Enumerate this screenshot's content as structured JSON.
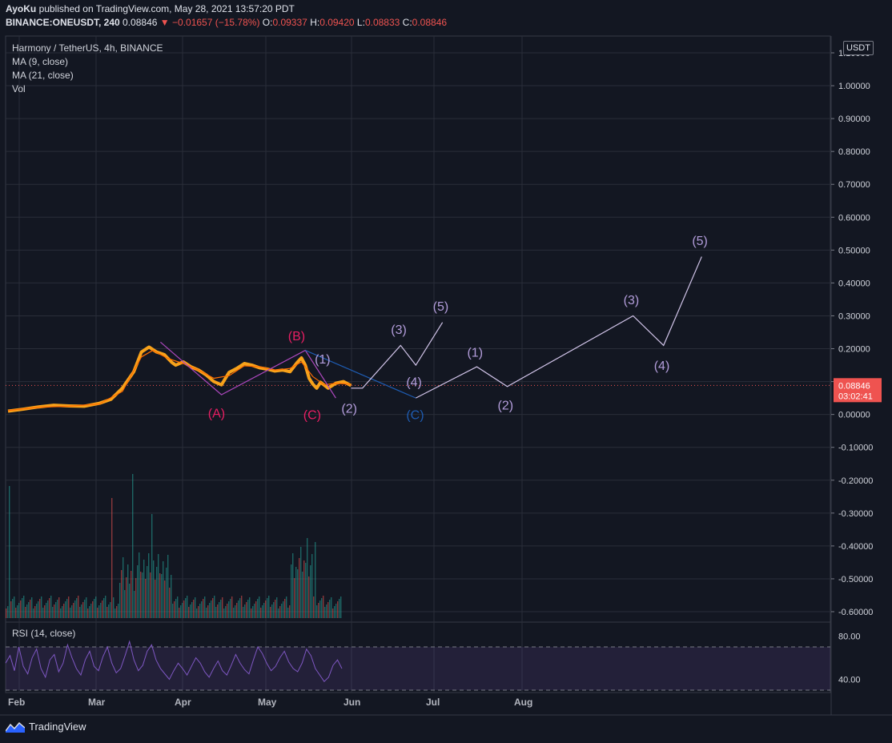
{
  "header": {
    "author": "AyoKu",
    "published": "published on TradingView.com, May 28, 2021 13:57:20 PDT",
    "symbol_line": "BINANCE:ONEUSDT, 240",
    "last": "0.08846",
    "arrow": "▼",
    "change": "−0.01657 (−15.78%)",
    "o_label": "O:",
    "o": "0.09337",
    "h_label": "H:",
    "h": "0.09420",
    "l_label": "L:",
    "l": "0.08833",
    "c_label": "C:",
    "c": "0.08846"
  },
  "legend": {
    "title": "Harmony / TetherUS, 4h, BINANCE",
    "ma9": "MA (9, close)",
    "ma21": "MA (21, close)",
    "vol": "Vol",
    "rsi": "RSI (14, close)"
  },
  "currency": "USDT",
  "brand": "TradingView",
  "colors": {
    "bg": "#131722",
    "grid": "#2a2e39",
    "price_line": "#f7a21b",
    "red": "#ef5350",
    "purple": "#b39ddb",
    "pink": "#e91e63",
    "blue": "#1e5bb0",
    "rsi": "#7e57c2"
  },
  "chart_data": {
    "type": "line",
    "title": "Harmony / TetherUS, 4h, BINANCE",
    "ylabel": "USDT",
    "ylim": [
      -0.6,
      1.1
    ],
    "y_ticks": [
      "1.10000",
      "1.00000",
      "0.90000",
      "0.80000",
      "0.70000",
      "0.60000",
      "0.50000",
      "0.40000",
      "0.30000",
      "0.20000",
      "0.10000",
      "0.00000",
      "-0.10000",
      "-0.20000",
      "-0.30000",
      "-0.40000",
      "-0.50000",
      "-0.60000"
    ],
    "x_ticks": [
      "Feb",
      "Mar",
      "Apr",
      "May",
      "Jun",
      "Jul",
      "Aug"
    ],
    "last_price": "0.08846",
    "countdown": "03:02:41",
    "price_series": {
      "name": "ONEUSDT",
      "x": [
        0,
        4,
        8,
        12,
        16,
        20,
        24,
        27,
        30,
        33,
        35,
        37,
        39,
        41,
        43,
        44,
        46,
        48,
        50,
        52,
        54,
        56,
        58,
        60,
        62,
        64,
        66,
        68,
        70,
        72,
        74,
        76,
        77,
        78,
        79,
        80,
        81,
        82,
        84,
        86,
        88,
        90
      ],
      "y": [
        0.01,
        0.016,
        0.023,
        0.028,
        0.026,
        0.025,
        0.034,
        0.046,
        0.08,
        0.13,
        0.19,
        0.205,
        0.19,
        0.182,
        0.158,
        0.15,
        0.16,
        0.145,
        0.135,
        0.12,
        0.1,
        0.09,
        0.128,
        0.14,
        0.155,
        0.15,
        0.142,
        0.138,
        0.132,
        0.135,
        0.13,
        0.16,
        0.172,
        0.15,
        0.11,
        0.092,
        0.08,
        0.098,
        0.08,
        0.095,
        0.1,
        0.088
      ]
    },
    "ma_series": {
      "name": "MA (9, close)",
      "x": [
        0,
        8,
        16,
        24,
        30,
        35,
        38,
        42,
        46,
        50,
        54,
        58,
        62,
        66,
        70,
        74,
        77,
        80,
        83,
        86,
        90
      ],
      "y": [
        0.012,
        0.022,
        0.025,
        0.032,
        0.07,
        0.175,
        0.195,
        0.17,
        0.155,
        0.135,
        0.11,
        0.118,
        0.148,
        0.145,
        0.135,
        0.14,
        0.16,
        0.115,
        0.09,
        0.095,
        0.092
      ]
    },
    "corrective_wave": {
      "labels": [
        "(A)",
        "(B)",
        "(C)"
      ],
      "x": [
        40,
        56,
        78,
        86
      ],
      "y": [
        0.22,
        0.06,
        0.195,
        0.05
      ]
    },
    "projection_1": {
      "labels": [
        "(1)",
        "(2)",
        "(3)",
        "(4)",
        "(5)"
      ],
      "x": [
        90,
        93,
        103,
        107,
        114
      ],
      "y": [
        0.08,
        0.08,
        0.21,
        0.15,
        0.28
      ]
    },
    "projection_blue": {
      "labels": [
        "(C)"
      ],
      "x": [
        78,
        107
      ],
      "y": [
        0.195,
        0.05
      ]
    },
    "projection_2": {
      "labels": [
        "(1)",
        "(2)",
        "(3)",
        "(4)",
        "(5)"
      ],
      "x": [
        107,
        123,
        131,
        164,
        172,
        182
      ],
      "y": [
        0.05,
        0.145,
        0.085,
        0.3,
        0.21,
        0.48
      ]
    },
    "wave_labels": [
      {
        "text": "(A)",
        "x": 55,
        "y": 0.005,
        "color": "pink"
      },
      {
        "text": "(B)",
        "x": 76,
        "y": 0.24,
        "color": "pink"
      },
      {
        "text": "(C)",
        "x": 80,
        "y": 0.0,
        "color": "pink"
      },
      {
        "text": "(1)",
        "x": 83,
        "y": 0.17,
        "color": "purple"
      },
      {
        "text": "(2)",
        "x": 90,
        "y": 0.02,
        "color": "purple"
      },
      {
        "text": "(3)",
        "x": 103,
        "y": 0.26,
        "color": "purple"
      },
      {
        "text": "(4)",
        "x": 107,
        "y": 0.1,
        "color": "purple"
      },
      {
        "text": "(5)",
        "x": 114,
        "y": 0.33,
        "color": "purple"
      },
      {
        "text": "(C)",
        "x": 107,
        "y": 0.0,
        "color": "blue"
      },
      {
        "text": "(1)",
        "x": 123,
        "y": 0.19,
        "color": "purple"
      },
      {
        "text": "(2)",
        "x": 131,
        "y": 0.03,
        "color": "purple"
      },
      {
        "text": "(3)",
        "x": 164,
        "y": 0.35,
        "color": "purple"
      },
      {
        "text": "(4)",
        "x": 172,
        "y": 0.15,
        "color": "purple"
      },
      {
        "text": "(5)",
        "x": 182,
        "y": 0.53,
        "color": "purple"
      }
    ],
    "rsi": {
      "name": "RSI (14, close)",
      "ylim": [
        30,
        90
      ],
      "y_ticks": [
        "80.00",
        "40.00"
      ],
      "upper": 70,
      "lower": 30,
      "values": [
        55,
        62,
        48,
        70,
        52,
        45,
        60,
        68,
        50,
        42,
        58,
        63,
        47,
        55,
        72,
        60,
        50,
        44,
        58,
        66,
        52,
        48,
        61,
        70,
        55,
        46,
        50,
        62,
        75,
        58,
        48,
        53,
        66,
        72,
        58,
        50,
        45,
        40,
        48,
        55,
        50,
        44,
        52,
        60,
        55,
        47,
        42,
        50,
        57,
        48,
        44,
        53,
        63,
        55,
        49,
        45,
        58,
        70,
        64,
        55,
        48,
        52,
        60,
        66,
        56,
        50,
        47,
        55,
        68,
        62,
        50,
        44,
        38,
        42,
        53,
        58,
        50
      ]
    }
  }
}
